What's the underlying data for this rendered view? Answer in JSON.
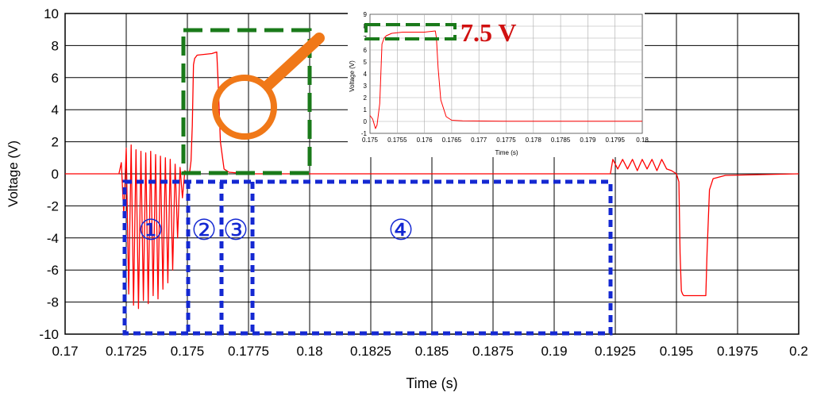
{
  "chart_data": [
    {
      "type": "line",
      "title": "",
      "xlabel": "Time (s)",
      "ylabel": "Voltage (V)",
      "xlim": [
        0.17,
        0.2
      ],
      "ylim": [
        -10,
        10
      ],
      "grid": true,
      "x_ticks": [
        "0.17",
        "0.1725",
        "0.175",
        "0.1775",
        "0.18",
        "0.1825",
        "0.185",
        "0.1875",
        "0.19",
        "0.1925",
        "0.195",
        "0.1975",
        "0.2"
      ],
      "y_ticks": [
        "-10",
        "-8",
        "-6",
        "-4",
        "-2",
        "0",
        "2",
        "4",
        "6",
        "8",
        "10"
      ],
      "line_color": "#ff0000",
      "series": [
        {
          "x": [
            0.17,
            0.1722,
            0.1723,
            0.1724,
            0.1725,
            0.1726,
            0.1727,
            0.1728,
            0.1729,
            0.173,
            0.1731,
            0.1732,
            0.1733,
            0.1734,
            0.1735,
            0.1736,
            0.1737,
            0.1738,
            0.1739,
            0.174,
            0.1741,
            0.1742,
            0.1743,
            0.1744,
            0.1745,
            0.1746,
            0.1747,
            0.1748,
            0.1749,
            0.175,
            0.1751,
            0.17515,
            0.1752,
            0.17525,
            0.1753,
            0.1754,
            0.176,
            0.1762,
            0.17625,
            0.17635,
            0.1765,
            0.1767,
            0.1775,
            0.18,
            0.1923,
            0.1924,
            0.1926,
            0.1928,
            0.193,
            0.1932,
            0.1934,
            0.1936,
            0.1938,
            0.194,
            0.1942,
            0.1944,
            0.1946,
            0.1948,
            0.195,
            0.1951,
            0.19515,
            0.1952,
            0.19525,
            0.1953,
            0.1955,
            0.1962,
            0.19625,
            0.19635,
            0.1965,
            0.197,
            0.2
          ],
          "y": [
            0,
            0,
            0.7,
            -2.5,
            1.6,
            -7.5,
            1.8,
            -8.2,
            1.5,
            -8.4,
            1.4,
            -7.9,
            1.3,
            -8.1,
            1.4,
            -7.6,
            1.2,
            -7.8,
            1.1,
            -7.2,
            1.0,
            -6.8,
            0.9,
            -6.0,
            0.6,
            -4.0,
            0.4,
            -1.5,
            0.2,
            0,
            0.2,
            0.8,
            3.0,
            6.8,
            7.2,
            7.4,
            7.5,
            7.6,
            6.0,
            2.0,
            0.3,
            0.1,
            0,
            0,
            0,
            0.9,
            0.3,
            0.9,
            0.3,
            0.9,
            0.2,
            0.9,
            0.3,
            0.9,
            0.2,
            0.9,
            0.3,
            0.2,
            0,
            -0.5,
            -5.0,
            -7.3,
            -7.5,
            -7.6,
            -7.6,
            -7.6,
            -5.0,
            -1.0,
            -0.3,
            -0.1,
            0
          ]
        }
      ],
      "annotations": [
        "①",
        "②",
        "③",
        "④",
        "7.5 V"
      ],
      "region_color": "#1428d2",
      "zoom_box_color": "#1a7a1a",
      "magnifier_color": "#f07818",
      "label_color": "#d01010"
    },
    {
      "type": "line",
      "title": "",
      "xlabel": "Time (s)",
      "ylabel": "Voltage (V)",
      "xlim": [
        0.175,
        0.18
      ],
      "ylim": [
        -1,
        9
      ],
      "grid": true,
      "x_ticks": [
        "0.175",
        "0.1755",
        "0.176",
        "0.1765",
        "0.177",
        "0.1775",
        "0.178",
        "0.1785",
        "0.179",
        "0.1795",
        "0.18"
      ],
      "y_ticks": [
        "-1",
        "0",
        "1",
        "2",
        "3",
        "4",
        "5",
        "6",
        "7",
        "8",
        "9"
      ],
      "line_color": "#ff0000",
      "series": [
        {
          "x": [
            0.175,
            0.17505,
            0.1751,
            0.17513,
            0.17518,
            0.1752,
            0.17522,
            0.17526,
            0.1753,
            0.1754,
            0.1756,
            0.1758,
            0.176,
            0.1762,
            0.17622,
            0.17625,
            0.1763,
            0.1764,
            0.1765,
            0.1767,
            0.1775,
            0.18
          ],
          "y": [
            0.5,
            0.2,
            -0.6,
            -0.3,
            1.5,
            4.0,
            6.5,
            7.0,
            7.2,
            7.4,
            7.5,
            7.5,
            7.5,
            7.6,
            7.0,
            4.5,
            1.8,
            0.4,
            0.1,
            0.05,
            0.02,
            0.02
          ]
        }
      ]
    }
  ]
}
